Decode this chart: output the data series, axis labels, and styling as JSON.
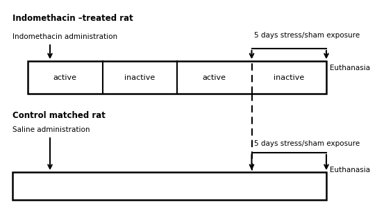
{
  "bg_color": "#ffffff",
  "title1": "Indomethacin –treated rat",
  "title2": "Control matched rat",
  "label_indo_admin": "Indomethacin administration",
  "label_saline_admin": "Saline administration",
  "label_stress1": "5 days stress/sham exposure",
  "label_stress2": "5 days stress/sham exposure",
  "label_euthanasia1": "Euthanasia",
  "label_euthanasia2": "Euthanasia",
  "segments": [
    "active",
    "inactive",
    "active",
    "inactive"
  ],
  "text_color": "#000000",
  "font_size_title": 8.5,
  "font_size_label": 7.5,
  "font_size_seg": 8.0
}
